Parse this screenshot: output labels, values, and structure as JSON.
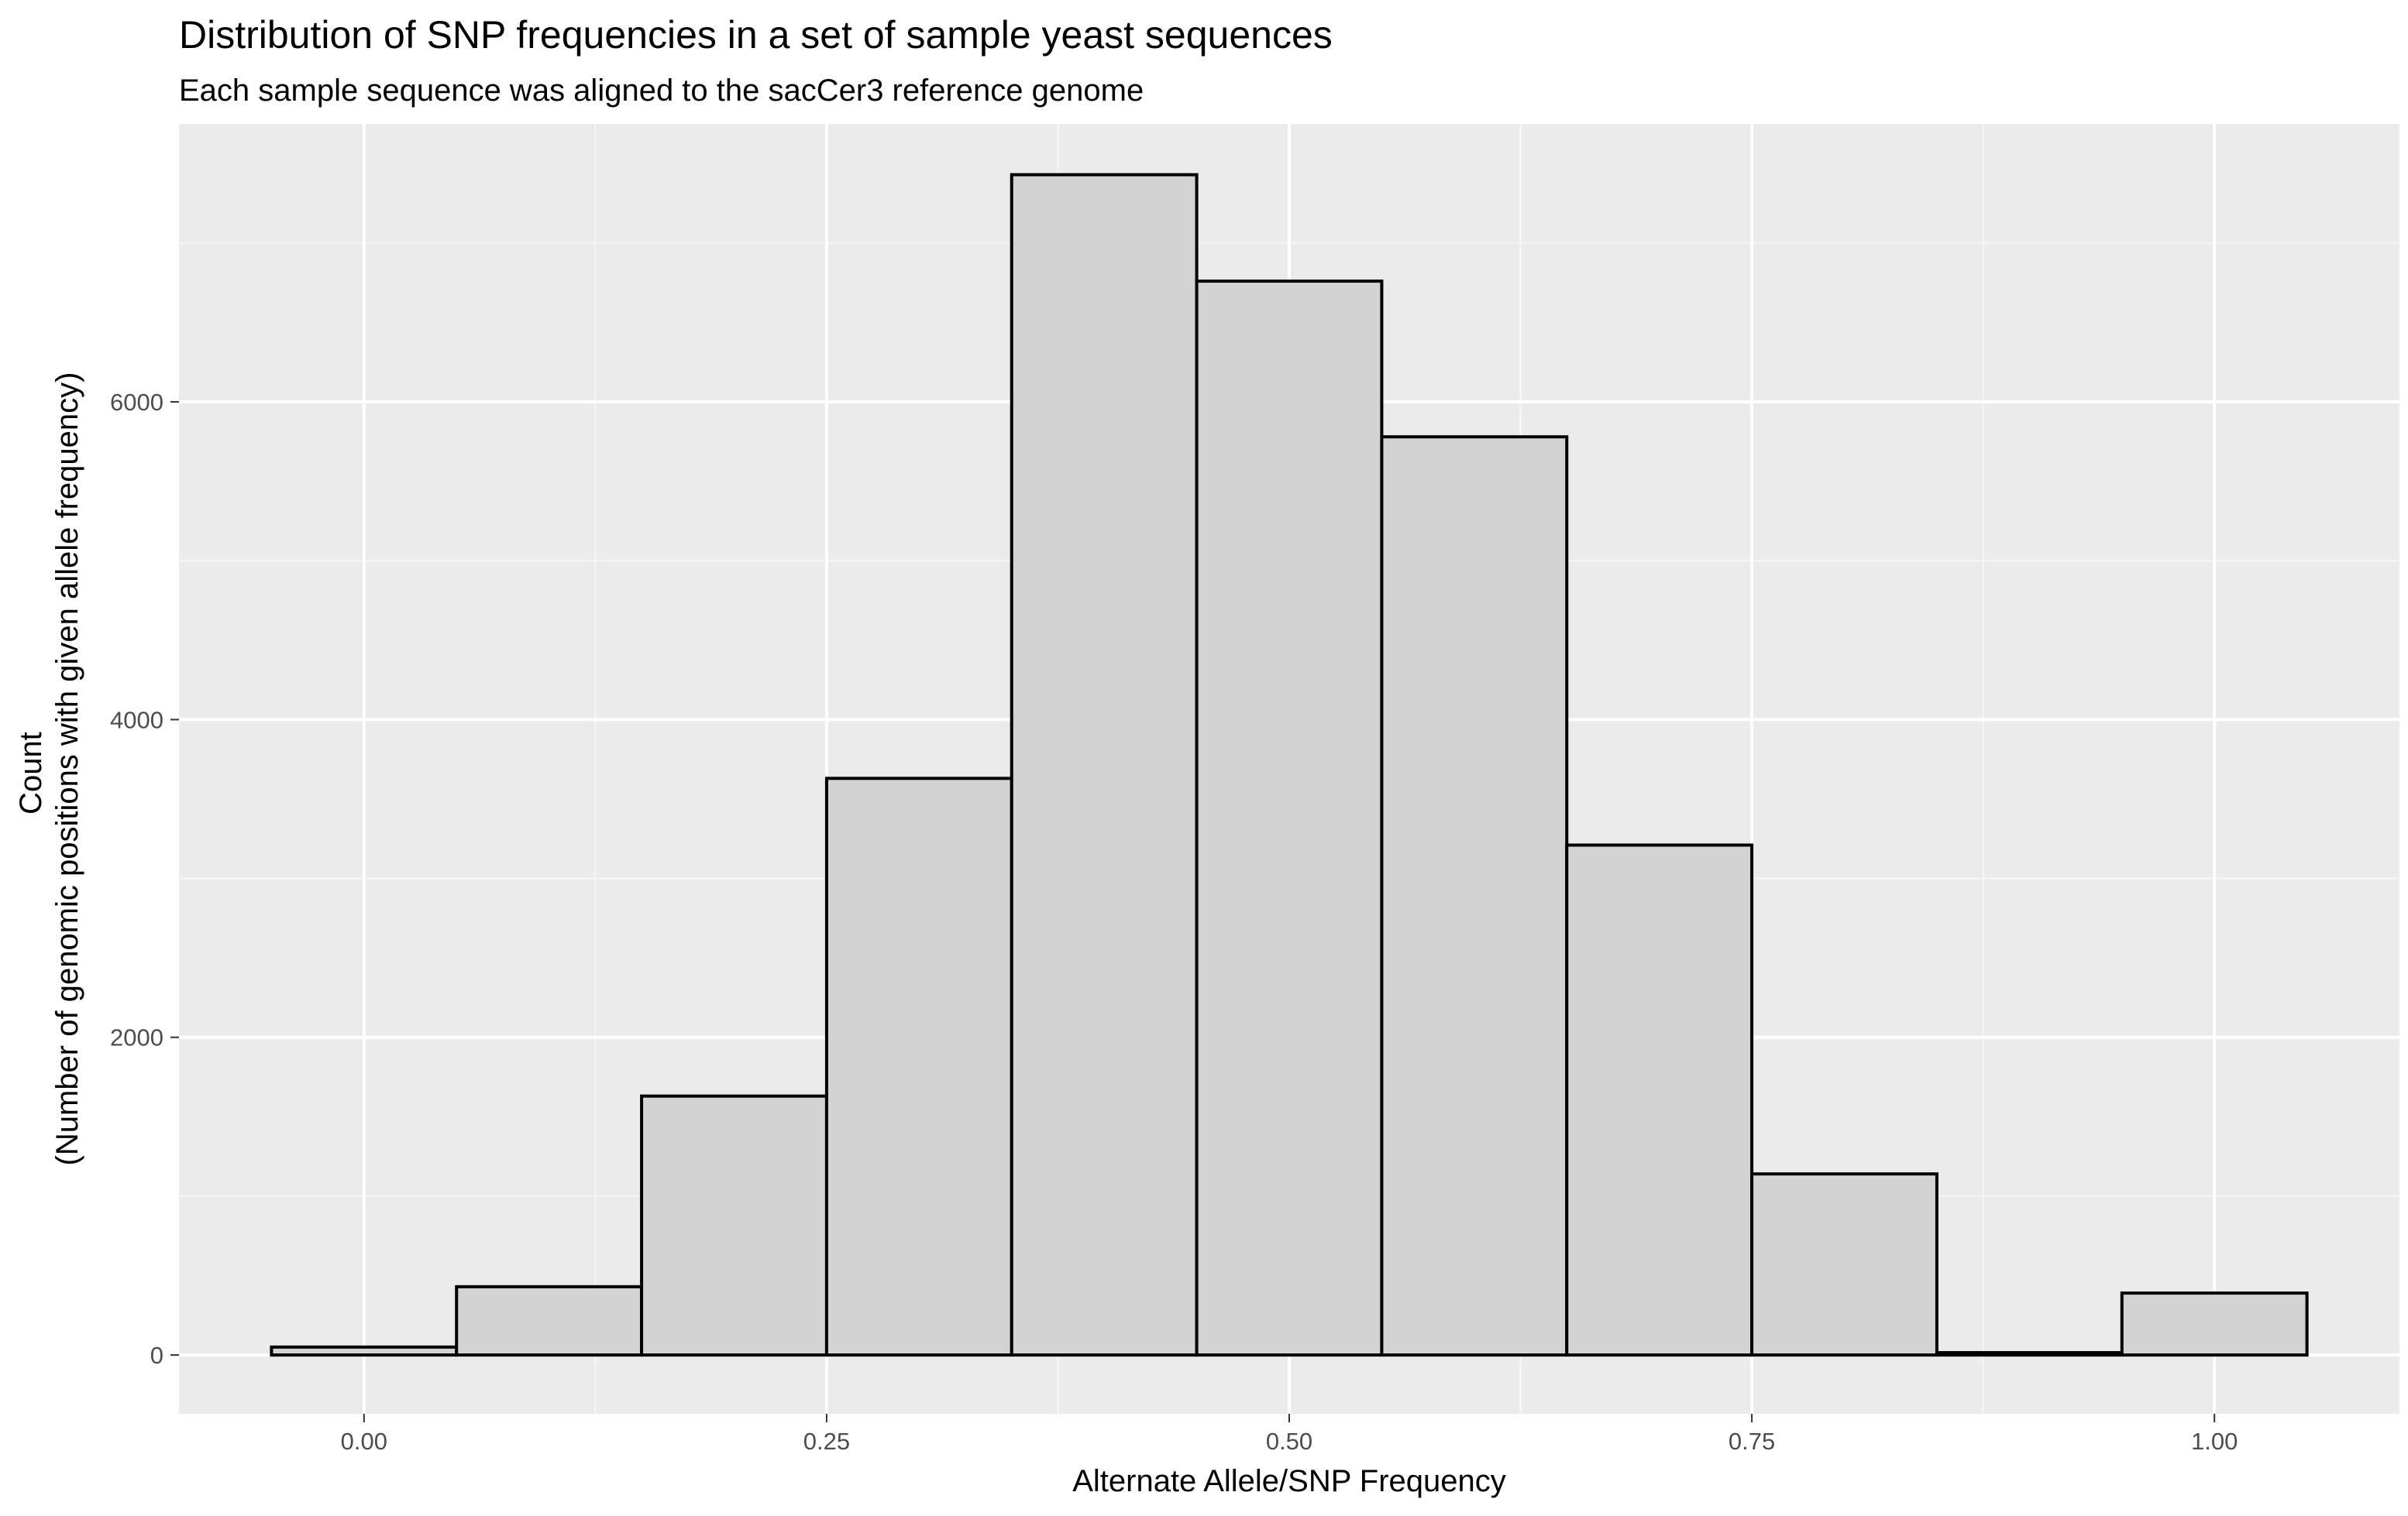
{
  "chart_data": {
    "type": "bar",
    "title": "Distribution of SNP frequencies in a set of sample yeast sequences",
    "subtitle": "Each sample sequence was aligned to the sacCer3 reference genome",
    "xlabel": "Alternate Allele/SNP Frequency",
    "ylabel_lines": [
      "Count",
      "(Number of genomic positions with given allele frequency)"
    ],
    "xlim": [
      -0.1,
      1.1
    ],
    "ylim": [
      -370,
      7750
    ],
    "x_ticks": [
      0.0,
      0.25,
      0.5,
      0.75,
      1.0
    ],
    "x_tick_labels": [
      "0.00",
      "0.25",
      "0.50",
      "0.75",
      "1.00"
    ],
    "x_minor_ticks": [
      0.125,
      0.375,
      0.625,
      0.875
    ],
    "y_ticks": [
      0,
      2000,
      4000,
      6000
    ],
    "y_tick_labels": [
      "0",
      "2000",
      "4000",
      "6000"
    ],
    "y_minor_ticks": [
      1000,
      3000,
      5000,
      7000
    ],
    "grid": true,
    "bin_width": 0.1,
    "bins": [
      {
        "x": 0.0,
        "count": 50
      },
      {
        "x": 0.1,
        "count": 430
      },
      {
        "x": 0.2,
        "count": 1630
      },
      {
        "x": 0.3,
        "count": 3630
      },
      {
        "x": 0.4,
        "count": 7430
      },
      {
        "x": 0.5,
        "count": 6760
      },
      {
        "x": 0.6,
        "count": 5780
      },
      {
        "x": 0.7,
        "count": 3210
      },
      {
        "x": 0.8,
        "count": 1140
      },
      {
        "x": 0.9,
        "count": 15
      },
      {
        "x": 1.0,
        "count": 390
      }
    ],
    "colors": {
      "panel_background": "#ebebeb",
      "grid_major": "#ffffff",
      "grid_minor": "#f6f6f6",
      "bar_fill": "#d3d3d3",
      "bar_stroke": "#000000",
      "tick_label": "#4d4d4d",
      "tick_mark": "#333333"
    }
  }
}
